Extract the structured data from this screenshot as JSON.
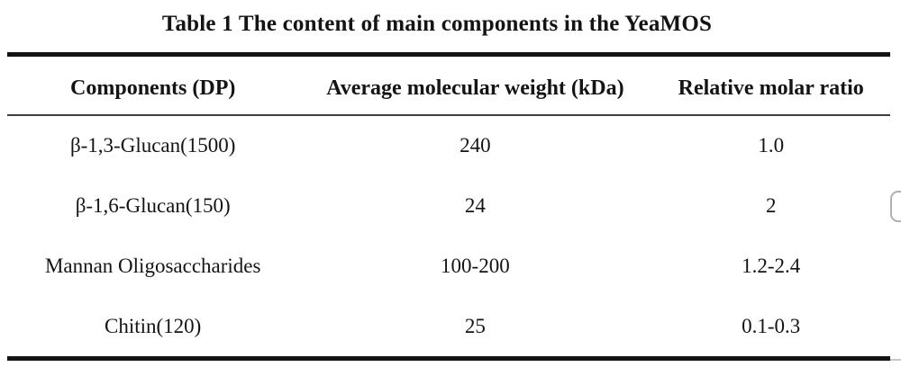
{
  "title": "Table 1 The content of main components in the YeaMOS",
  "table": {
    "columns": [
      "Components (DP)",
      "Average molecular weight (kDa)",
      "Relative molar ratio"
    ],
    "rows": [
      [
        "β-1,3-Glucan(1500)",
        "240",
        "1.0"
      ],
      [
        "β-1,6-Glucan(150)",
        "24",
        "2"
      ],
      [
        "Mannan Oligosaccharides",
        "100-200",
        "1.2-2.4"
      ],
      [
        "Chitin(120)",
        "25",
        "0.1-0.3"
      ]
    ]
  },
  "colors": {
    "text": "#141414",
    "thick_rule": "#141414",
    "thin_rule": "#3f3f3f",
    "scrollbar_thumb_border": "#b0b0b0",
    "background": "#ffffff"
  }
}
